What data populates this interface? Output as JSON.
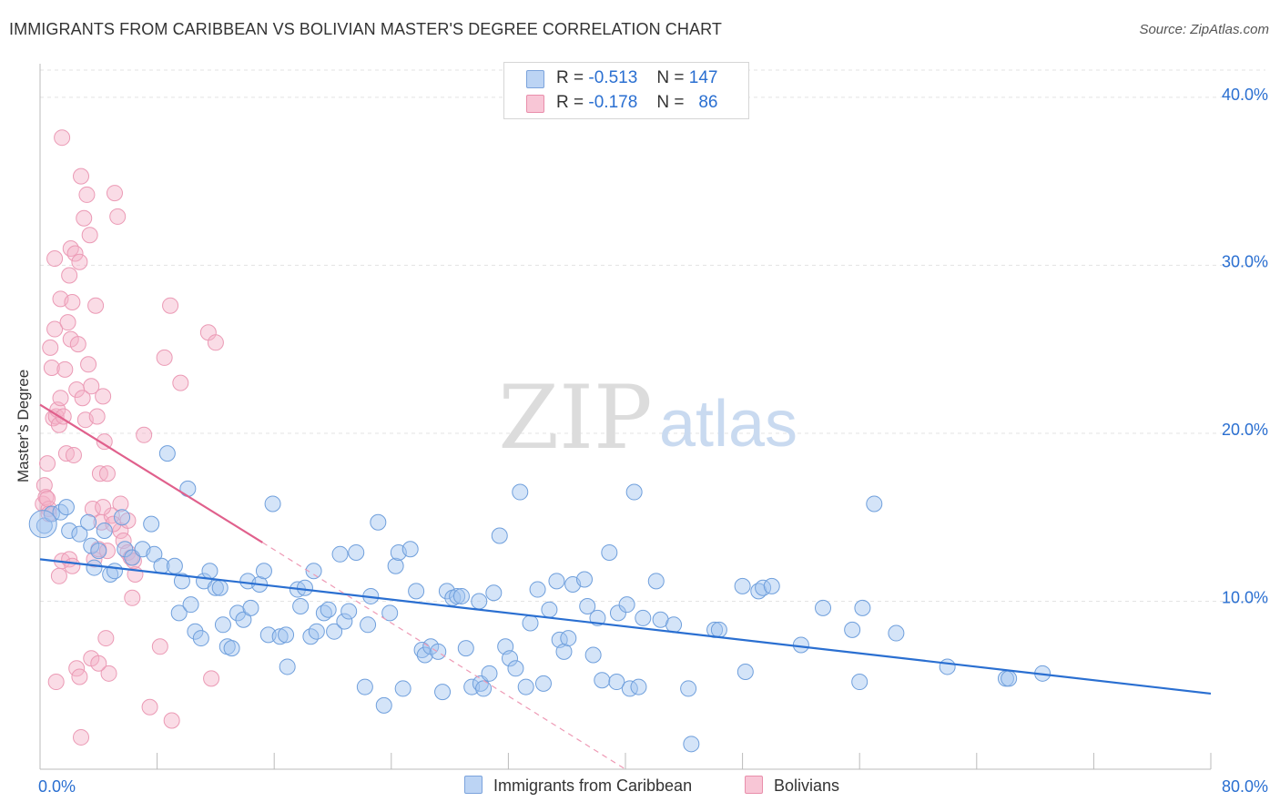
{
  "title": "IMMIGRANTS FROM CARIBBEAN VS BOLIVIAN MASTER'S DEGREE CORRELATION CHART",
  "source": "Source: ZipAtlas.com",
  "watermark": {
    "zip": "ZIP",
    "atlas": "atlas"
  },
  "legend": {
    "r_label": "R =",
    "n_label": "N =",
    "rows": [
      {
        "r": "-0.513",
        "n": "147",
        "color": "#4f8fe0"
      },
      {
        "r": "-0.178",
        "n": "86",
        "color": "#ee7fa2"
      }
    ]
  },
  "chart_data": {
    "type": "scatter",
    "title": "IMMIGRANTS FROM CARIBBEAN VS BOLIVIAN MASTER'S DEGREE CORRELATION CHART",
    "xlabel": "",
    "ylabel": "Master's Degree",
    "x_ticks": [
      "0.0%",
      "80.0%"
    ],
    "y_ticks": [
      "10.0%",
      "20.0%",
      "30.0%",
      "40.0%"
    ],
    "xlim": [
      0,
      80
    ],
    "ylim": [
      0,
      42
    ],
    "grid": true,
    "legend_position": "top-center",
    "series": [
      {
        "name": "Immigrants from Caribbean",
        "color": "#4f8fe0",
        "trend": [
          [
            0,
            12.5
          ],
          [
            80,
            4.5
          ]
        ],
        "points": [
          [
            0.3,
            14.5
          ],
          [
            0.8,
            15.2
          ],
          [
            1.4,
            15.3
          ],
          [
            1.8,
            15.6
          ],
          [
            2.0,
            14.2
          ],
          [
            2.7,
            14.0
          ],
          [
            3.3,
            14.7
          ],
          [
            3.5,
            13.3
          ],
          [
            3.7,
            12.0
          ],
          [
            4.0,
            13.0
          ],
          [
            4.4,
            14.2
          ],
          [
            4.8,
            11.6
          ],
          [
            5.1,
            11.8
          ],
          [
            5.6,
            15.0
          ],
          [
            5.8,
            13.1
          ],
          [
            6.3,
            12.6
          ],
          [
            7.0,
            13.1
          ],
          [
            7.6,
            14.6
          ],
          [
            7.8,
            12.8
          ],
          [
            8.3,
            12.1
          ],
          [
            8.7,
            18.8
          ],
          [
            9.2,
            12.1
          ],
          [
            9.5,
            9.3
          ],
          [
            9.7,
            11.2
          ],
          [
            10.1,
            16.7
          ],
          [
            10.3,
            9.8
          ],
          [
            10.6,
            8.2
          ],
          [
            11.0,
            7.8
          ],
          [
            11.2,
            11.2
          ],
          [
            11.6,
            11.8
          ],
          [
            12.0,
            10.8
          ],
          [
            12.3,
            10.8
          ],
          [
            12.5,
            8.6
          ],
          [
            12.8,
            7.3
          ],
          [
            13.1,
            7.2
          ],
          [
            13.5,
            9.3
          ],
          [
            13.9,
            8.9
          ],
          [
            14.2,
            11.2
          ],
          [
            14.4,
            9.6
          ],
          [
            15.0,
            11.0
          ],
          [
            15.3,
            11.8
          ],
          [
            15.6,
            8.0
          ],
          [
            15.9,
            15.8
          ],
          [
            16.4,
            7.9
          ],
          [
            16.8,
            8.0
          ],
          [
            16.9,
            6.1
          ],
          [
            17.6,
            10.7
          ],
          [
            17.8,
            9.7
          ],
          [
            18.1,
            10.8
          ],
          [
            18.5,
            7.9
          ],
          [
            18.7,
            11.8
          ],
          [
            18.9,
            8.2
          ],
          [
            19.4,
            9.3
          ],
          [
            19.7,
            9.5
          ],
          [
            20.1,
            8.2
          ],
          [
            20.5,
            12.8
          ],
          [
            20.8,
            8.8
          ],
          [
            21.1,
            9.4
          ],
          [
            21.6,
            12.9
          ],
          [
            22.2,
            4.9
          ],
          [
            22.4,
            8.6
          ],
          [
            22.6,
            10.3
          ],
          [
            23.1,
            14.7
          ],
          [
            23.5,
            3.8
          ],
          [
            23.9,
            9.3
          ],
          [
            24.3,
            12.1
          ],
          [
            24.5,
            12.9
          ],
          [
            24.8,
            4.8
          ],
          [
            25.3,
            13.1
          ],
          [
            25.7,
            10.6
          ],
          [
            26.1,
            7.1
          ],
          [
            26.3,
            6.8
          ],
          [
            26.7,
            7.3
          ],
          [
            27.2,
            7.0
          ],
          [
            27.5,
            4.6
          ],
          [
            27.8,
            10.6
          ],
          [
            28.2,
            10.2
          ],
          [
            28.5,
            10.3
          ],
          [
            28.8,
            10.3
          ],
          [
            29.1,
            7.2
          ],
          [
            29.5,
            4.9
          ],
          [
            30.0,
            10.0
          ],
          [
            30.1,
            5.1
          ],
          [
            30.3,
            4.8
          ],
          [
            30.7,
            5.7
          ],
          [
            31.0,
            10.5
          ],
          [
            31.4,
            13.9
          ],
          [
            31.8,
            7.3
          ],
          [
            32.1,
            6.6
          ],
          [
            32.5,
            6.0
          ],
          [
            32.8,
            16.5
          ],
          [
            33.2,
            4.9
          ],
          [
            33.5,
            8.7
          ],
          [
            34.0,
            10.7
          ],
          [
            34.4,
            5.1
          ],
          [
            34.8,
            9.5
          ],
          [
            35.3,
            11.2
          ],
          [
            35.5,
            7.7
          ],
          [
            35.8,
            7.0
          ],
          [
            36.1,
            7.8
          ],
          [
            36.4,
            11.0
          ],
          [
            37.2,
            11.3
          ],
          [
            37.4,
            9.7
          ],
          [
            37.8,
            6.8
          ],
          [
            38.1,
            9.0
          ],
          [
            38.4,
            5.3
          ],
          [
            38.9,
            12.9
          ],
          [
            39.4,
            5.2
          ],
          [
            39.5,
            9.3
          ],
          [
            40.1,
            9.8
          ],
          [
            40.3,
            4.8
          ],
          [
            40.6,
            16.5
          ],
          [
            40.9,
            4.9
          ],
          [
            41.2,
            9.0
          ],
          [
            42.1,
            11.2
          ],
          [
            42.4,
            8.9
          ],
          [
            43.3,
            8.6
          ],
          [
            44.3,
            4.8
          ],
          [
            44.5,
            1.5
          ],
          [
            46.1,
            8.3
          ],
          [
            46.4,
            8.3
          ],
          [
            48.0,
            10.9
          ],
          [
            48.2,
            5.8
          ],
          [
            49.1,
            10.6
          ],
          [
            49.4,
            10.8
          ],
          [
            50.0,
            10.9
          ],
          [
            52.0,
            7.4
          ],
          [
            53.5,
            9.6
          ],
          [
            55.5,
            8.3
          ],
          [
            56.0,
            5.2
          ],
          [
            56.2,
            9.6
          ],
          [
            57.0,
            15.8
          ],
          [
            58.5,
            8.1
          ],
          [
            62.0,
            6.1
          ],
          [
            66.0,
            5.4
          ],
          [
            66.2,
            5.4
          ],
          [
            68.5,
            5.7
          ]
        ]
      },
      {
        "name": "Bolivians",
        "color": "#ee7fa2",
        "trend": [
          [
            0,
            21.7
          ],
          [
            15.2,
            13.5
          ],
          [
            40,
            0
          ]
        ],
        "points": [
          [
            0.2,
            15.8
          ],
          [
            0.3,
            16.9
          ],
          [
            0.4,
            16.2
          ],
          [
            0.5,
            18.2
          ],
          [
            0.6,
            15.5
          ],
          [
            0.7,
            25.1
          ],
          [
            0.8,
            23.9
          ],
          [
            0.9,
            20.9
          ],
          [
            1.0,
            26.2
          ],
          [
            1.0,
            30.4
          ],
          [
            1.1,
            21.0
          ],
          [
            1.2,
            21.4
          ],
          [
            1.3,
            20.5
          ],
          [
            1.4,
            22.1
          ],
          [
            1.4,
            28.0
          ],
          [
            1.5,
            37.6
          ],
          [
            1.6,
            21.0
          ],
          [
            1.7,
            23.8
          ],
          [
            1.8,
            18.8
          ],
          [
            1.9,
            26.6
          ],
          [
            2.0,
            29.4
          ],
          [
            2.1,
            25.6
          ],
          [
            2.1,
            31.0
          ],
          [
            2.2,
            27.8
          ],
          [
            2.3,
            18.7
          ],
          [
            2.4,
            30.7
          ],
          [
            2.5,
            22.6
          ],
          [
            2.6,
            25.3
          ],
          [
            2.7,
            30.2
          ],
          [
            2.8,
            35.3
          ],
          [
            2.9,
            22.1
          ],
          [
            3.0,
            32.8
          ],
          [
            3.1,
            20.8
          ],
          [
            3.2,
            34.2
          ],
          [
            3.3,
            24.1
          ],
          [
            3.4,
            31.8
          ],
          [
            3.5,
            22.8
          ],
          [
            3.6,
            15.5
          ],
          [
            3.7,
            12.5
          ],
          [
            3.8,
            27.6
          ],
          [
            3.9,
            21.0
          ],
          [
            4.0,
            13.1
          ],
          [
            4.1,
            17.6
          ],
          [
            4.2,
            14.7
          ],
          [
            4.3,
            22.2
          ],
          [
            4.4,
            19.5
          ],
          [
            4.5,
            7.8
          ],
          [
            4.6,
            17.6
          ],
          [
            4.7,
            5.7
          ],
          [
            4.9,
            15.1
          ],
          [
            5.1,
            34.3
          ],
          [
            5.3,
            32.9
          ],
          [
            5.5,
            14.2
          ],
          [
            5.7,
            13.6
          ],
          [
            6.0,
            12.9
          ],
          [
            6.2,
            12.6
          ],
          [
            6.3,
            10.2
          ],
          [
            6.5,
            11.6
          ],
          [
            7.1,
            19.9
          ],
          [
            7.5,
            3.7
          ],
          [
            8.2,
            7.3
          ],
          [
            8.5,
            24.5
          ],
          [
            8.9,
            27.6
          ],
          [
            9.0,
            2.9
          ],
          [
            9.6,
            23.0
          ],
          [
            11.5,
            26.0
          ],
          [
            11.7,
            5.4
          ],
          [
            12.0,
            25.4
          ],
          [
            0.5,
            16.1
          ],
          [
            0.6,
            15.2
          ],
          [
            1.1,
            5.2
          ],
          [
            1.3,
            11.5
          ],
          [
            1.5,
            12.4
          ],
          [
            2.0,
            12.5
          ],
          [
            2.2,
            12.1
          ],
          [
            2.5,
            6.0
          ],
          [
            2.7,
            5.5
          ],
          [
            2.8,
            1.9
          ],
          [
            3.5,
            6.6
          ],
          [
            4.0,
            6.3
          ],
          [
            4.3,
            15.6
          ],
          [
            4.6,
            13.0
          ],
          [
            5.0,
            14.6
          ],
          [
            5.5,
            15.8
          ],
          [
            6.0,
            14.8
          ],
          [
            6.4,
            12.4
          ]
        ]
      }
    ]
  }
}
